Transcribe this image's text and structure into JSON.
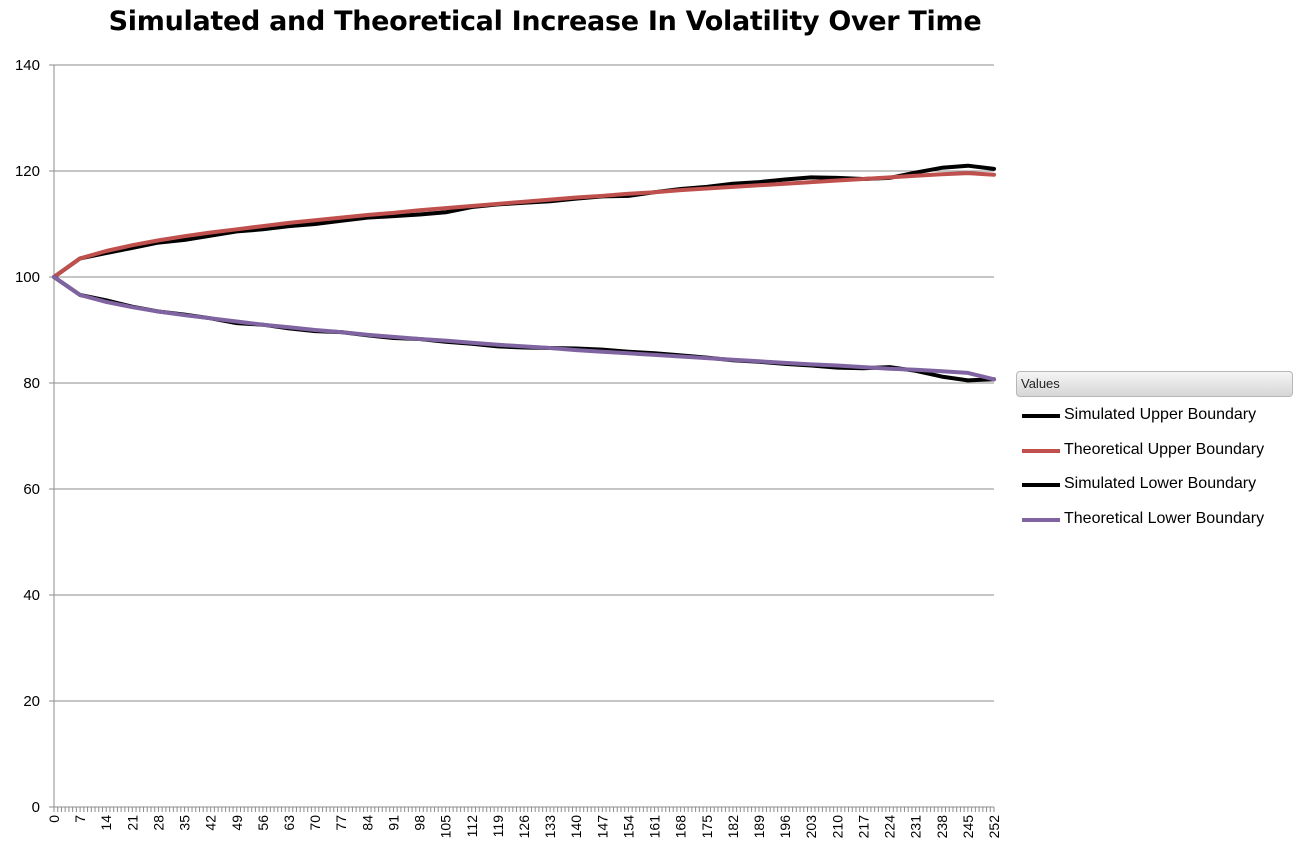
{
  "chart_data": {
    "type": "line",
    "title": "Simulated and Theoretical Increase In Volatility Over Time",
    "xlabel": "",
    "ylabel": "",
    "ylim": [
      0,
      140
    ],
    "xlim": [
      0,
      252
    ],
    "y_ticks": [
      "0",
      "20",
      "40",
      "60",
      "80",
      "100",
      "120",
      "140"
    ],
    "x_tick_labels": [
      "0",
      "7",
      "14",
      "21",
      "28",
      "35",
      "42",
      "49",
      "56",
      "63",
      "70",
      "77",
      "84",
      "91",
      "98",
      "105",
      "112",
      "119",
      "126",
      "133",
      "140",
      "147",
      "154",
      "161",
      "168",
      "175",
      "182",
      "189",
      "196",
      "203",
      "210",
      "217",
      "224",
      "231",
      "238",
      "245",
      "252"
    ],
    "grid": "horizontal",
    "legend_position": "right",
    "legend_title": "Values",
    "colors": {
      "simulated_upper": "#000000",
      "theoretical_upper": "#c0504d",
      "simulated_lower": "#000000",
      "theoretical_lower": "#8064a2"
    },
    "series": [
      {
        "name": "Simulated Upper Boundary",
        "x": [
          0,
          7,
          14,
          21,
          28,
          35,
          42,
          49,
          56,
          63,
          70,
          77,
          84,
          91,
          98,
          105,
          112,
          119,
          126,
          133,
          140,
          147,
          154,
          161,
          168,
          175,
          182,
          189,
          196,
          203,
          210,
          217,
          224,
          231,
          238,
          245,
          252
        ],
        "values": [
          100,
          103.5,
          104.5,
          105.5,
          106.5,
          107.0,
          107.8,
          108.6,
          109.0,
          109.6,
          110.0,
          110.6,
          111.2,
          111.5,
          111.8,
          112.2,
          113.2,
          113.7,
          114.0,
          114.3,
          114.8,
          115.2,
          115.3,
          116.0,
          116.6,
          117.0,
          117.6,
          117.9,
          118.4,
          118.8,
          118.7,
          118.5,
          118.7,
          119.7,
          120.6,
          121.0,
          120.4
        ]
      },
      {
        "name": "Theoretical Upper Boundary",
        "x": [
          0,
          7,
          14,
          21,
          28,
          35,
          42,
          49,
          56,
          63,
          70,
          77,
          84,
          91,
          98,
          105,
          112,
          119,
          126,
          133,
          140,
          147,
          154,
          161,
          168,
          175,
          182,
          189,
          196,
          203,
          210,
          217,
          224,
          231,
          238,
          245,
          252
        ],
        "values": [
          100,
          103.5,
          104.9,
          106.0,
          106.9,
          107.7,
          108.4,
          109.0,
          109.6,
          110.2,
          110.7,
          111.2,
          111.7,
          112.1,
          112.6,
          113.0,
          113.4,
          113.8,
          114.2,
          114.6,
          115.0,
          115.3,
          115.7,
          116.0,
          116.4,
          116.7,
          117.0,
          117.3,
          117.6,
          117.9,
          118.2,
          118.5,
          118.8,
          119.1,
          119.4,
          119.6,
          119.3
        ]
      },
      {
        "name": "Simulated Lower Boundary",
        "x": [
          0,
          7,
          14,
          21,
          28,
          35,
          42,
          49,
          56,
          63,
          70,
          77,
          84,
          91,
          98,
          105,
          112,
          119,
          126,
          133,
          140,
          147,
          154,
          161,
          168,
          175,
          182,
          189,
          196,
          203,
          210,
          217,
          224,
          231,
          238,
          245,
          252
        ],
        "values": [
          100,
          96.6,
          95.6,
          94.4,
          93.5,
          92.9,
          92.2,
          91.3,
          91.0,
          90.3,
          89.8,
          89.6,
          89.0,
          88.5,
          88.3,
          87.8,
          87.4,
          86.9,
          86.7,
          86.6,
          86.5,
          86.3,
          85.9,
          85.6,
          85.2,
          84.8,
          84.3,
          84.0,
          83.6,
          83.3,
          82.9,
          82.8,
          83.0,
          82.3,
          81.2,
          80.5,
          80.7
        ]
      },
      {
        "name": "Theoretical Lower Boundary",
        "x": [
          0,
          7,
          14,
          21,
          28,
          35,
          42,
          49,
          56,
          63,
          70,
          77,
          84,
          91,
          98,
          105,
          112,
          119,
          126,
          133,
          140,
          147,
          154,
          161,
          168,
          175,
          182,
          189,
          196,
          203,
          210,
          217,
          224,
          231,
          238,
          245,
          252
        ],
        "values": [
          100,
          96.6,
          95.3,
          94.3,
          93.5,
          92.8,
          92.2,
          91.6,
          91.0,
          90.5,
          90.0,
          89.6,
          89.1,
          88.7,
          88.3,
          88.0,
          87.6,
          87.2,
          86.9,
          86.6,
          86.2,
          85.9,
          85.6,
          85.3,
          85.0,
          84.7,
          84.4,
          84.1,
          83.8,
          83.5,
          83.3,
          83.0,
          82.7,
          82.5,
          82.2,
          81.9,
          80.7
        ]
      }
    ]
  }
}
